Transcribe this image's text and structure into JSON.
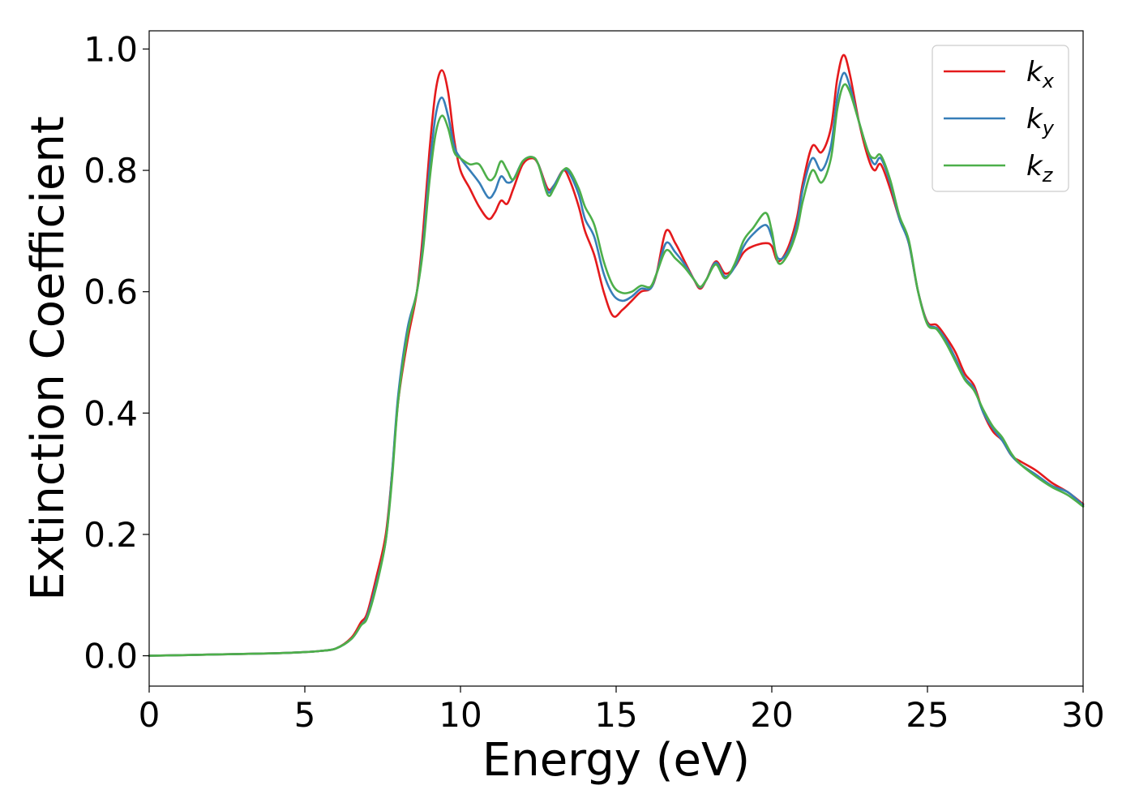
{
  "chart_data": {
    "type": "line",
    "title": "",
    "xlabel": "Energy (eV)",
    "ylabel": "Extinction Coefficient",
    "xlim": [
      0,
      30
    ],
    "ylim": [
      -0.05,
      1.03
    ],
    "xticks": [
      0,
      5,
      10,
      15,
      20,
      25,
      30
    ],
    "xtick_labels": [
      "0",
      "5",
      "10",
      "15",
      "20",
      "25",
      "30"
    ],
    "yticks": [
      0.0,
      0.2,
      0.4,
      0.6,
      0.8,
      1.0
    ],
    "ytick_labels": [
      "0.0",
      "0.2",
      "0.4",
      "0.6",
      "0.8",
      "1.0"
    ],
    "grid": false,
    "legend_position": "top-right",
    "series": [
      {
        "name": "k_x",
        "legend_base": "k",
        "legend_sub": "x",
        "color": "#e41a1c",
        "points": [
          [
            0,
            0.0
          ],
          [
            2,
            0.002
          ],
          [
            4,
            0.004
          ],
          [
            5,
            0.006
          ],
          [
            5.5,
            0.008
          ],
          [
            6,
            0.012
          ],
          [
            6.5,
            0.03
          ],
          [
            6.8,
            0.055
          ],
          [
            7.0,
            0.07
          ],
          [
            7.3,
            0.13
          ],
          [
            7.6,
            0.2
          ],
          [
            7.8,
            0.3
          ],
          [
            8.0,
            0.42
          ],
          [
            8.3,
            0.52
          ],
          [
            8.6,
            0.6
          ],
          [
            8.8,
            0.7
          ],
          [
            9.0,
            0.83
          ],
          [
            9.2,
            0.93
          ],
          [
            9.4,
            0.965
          ],
          [
            9.6,
            0.93
          ],
          [
            9.8,
            0.85
          ],
          [
            10.0,
            0.8
          ],
          [
            10.3,
            0.77
          ],
          [
            10.6,
            0.74
          ],
          [
            10.9,
            0.72
          ],
          [
            11.1,
            0.73
          ],
          [
            11.3,
            0.75
          ],
          [
            11.5,
            0.745
          ],
          [
            11.7,
            0.77
          ],
          [
            12.0,
            0.81
          ],
          [
            12.3,
            0.82
          ],
          [
            12.5,
            0.81
          ],
          [
            12.8,
            0.77
          ],
          [
            13.0,
            0.775
          ],
          [
            13.3,
            0.8
          ],
          [
            13.5,
            0.785
          ],
          [
            13.8,
            0.74
          ],
          [
            14.0,
            0.7
          ],
          [
            14.3,
            0.66
          ],
          [
            14.6,
            0.6
          ],
          [
            14.9,
            0.56
          ],
          [
            15.2,
            0.57
          ],
          [
            15.5,
            0.585
          ],
          [
            15.8,
            0.6
          ],
          [
            16.1,
            0.605
          ],
          [
            16.3,
            0.63
          ],
          [
            16.6,
            0.7
          ],
          [
            16.9,
            0.68
          ],
          [
            17.2,
            0.65
          ],
          [
            17.5,
            0.62
          ],
          [
            17.7,
            0.605
          ],
          [
            17.9,
            0.62
          ],
          [
            18.2,
            0.65
          ],
          [
            18.5,
            0.63
          ],
          [
            18.8,
            0.64
          ],
          [
            19.1,
            0.665
          ],
          [
            19.4,
            0.675
          ],
          [
            19.8,
            0.68
          ],
          [
            20.0,
            0.675
          ],
          [
            20.2,
            0.65
          ],
          [
            20.5,
            0.67
          ],
          [
            20.8,
            0.72
          ],
          [
            21.0,
            0.78
          ],
          [
            21.3,
            0.84
          ],
          [
            21.6,
            0.83
          ],
          [
            21.9,
            0.87
          ],
          [
            22.1,
            0.95
          ],
          [
            22.3,
            0.99
          ],
          [
            22.5,
            0.96
          ],
          [
            22.8,
            0.88
          ],
          [
            23.1,
            0.82
          ],
          [
            23.3,
            0.8
          ],
          [
            23.5,
            0.81
          ],
          [
            23.8,
            0.77
          ],
          [
            24.1,
            0.72
          ],
          [
            24.4,
            0.68
          ],
          [
            24.7,
            0.6
          ],
          [
            25.0,
            0.55
          ],
          [
            25.3,
            0.545
          ],
          [
            25.6,
            0.525
          ],
          [
            25.9,
            0.5
          ],
          [
            26.2,
            0.465
          ],
          [
            26.5,
            0.445
          ],
          [
            26.8,
            0.4
          ],
          [
            27.1,
            0.37
          ],
          [
            27.4,
            0.355
          ],
          [
            27.7,
            0.33
          ],
          [
            28.0,
            0.32
          ],
          [
            28.5,
            0.305
          ],
          [
            29.0,
            0.285
          ],
          [
            29.5,
            0.27
          ],
          [
            30.0,
            0.25
          ]
        ]
      },
      {
        "name": "k_y",
        "legend_base": "k",
        "legend_sub": "y",
        "color": "#377eb8",
        "points": [
          [
            0,
            0.0
          ],
          [
            2,
            0.002
          ],
          [
            4,
            0.004
          ],
          [
            5,
            0.006
          ],
          [
            5.5,
            0.008
          ],
          [
            6,
            0.012
          ],
          [
            6.5,
            0.028
          ],
          [
            6.8,
            0.05
          ],
          [
            7.0,
            0.065
          ],
          [
            7.3,
            0.12
          ],
          [
            7.6,
            0.19
          ],
          [
            7.8,
            0.3
          ],
          [
            8.0,
            0.43
          ],
          [
            8.3,
            0.54
          ],
          [
            8.6,
            0.6
          ],
          [
            8.8,
            0.68
          ],
          [
            9.0,
            0.8
          ],
          [
            9.2,
            0.89
          ],
          [
            9.4,
            0.92
          ],
          [
            9.6,
            0.89
          ],
          [
            9.8,
            0.84
          ],
          [
            10.0,
            0.82
          ],
          [
            10.3,
            0.8
          ],
          [
            10.6,
            0.78
          ],
          [
            10.9,
            0.755
          ],
          [
            11.1,
            0.765
          ],
          [
            11.3,
            0.79
          ],
          [
            11.5,
            0.78
          ],
          [
            11.7,
            0.785
          ],
          [
            12.0,
            0.815
          ],
          [
            12.3,
            0.822
          ],
          [
            12.5,
            0.81
          ],
          [
            12.8,
            0.765
          ],
          [
            13.0,
            0.775
          ],
          [
            13.3,
            0.8
          ],
          [
            13.5,
            0.795
          ],
          [
            13.8,
            0.76
          ],
          [
            14.0,
            0.72
          ],
          [
            14.3,
            0.69
          ],
          [
            14.6,
            0.63
          ],
          [
            14.9,
            0.595
          ],
          [
            15.2,
            0.585
          ],
          [
            15.5,
            0.592
          ],
          [
            15.8,
            0.605
          ],
          [
            16.1,
            0.605
          ],
          [
            16.3,
            0.63
          ],
          [
            16.6,
            0.68
          ],
          [
            16.9,
            0.665
          ],
          [
            17.2,
            0.645
          ],
          [
            17.5,
            0.62
          ],
          [
            17.7,
            0.607
          ],
          [
            17.9,
            0.62
          ],
          [
            18.2,
            0.648
          ],
          [
            18.5,
            0.625
          ],
          [
            18.8,
            0.64
          ],
          [
            19.1,
            0.675
          ],
          [
            19.4,
            0.695
          ],
          [
            19.8,
            0.71
          ],
          [
            20.0,
            0.69
          ],
          [
            20.2,
            0.655
          ],
          [
            20.5,
            0.665
          ],
          [
            20.8,
            0.71
          ],
          [
            21.0,
            0.77
          ],
          [
            21.3,
            0.82
          ],
          [
            21.6,
            0.8
          ],
          [
            21.9,
            0.84
          ],
          [
            22.1,
            0.92
          ],
          [
            22.3,
            0.96
          ],
          [
            22.5,
            0.94
          ],
          [
            22.8,
            0.88
          ],
          [
            23.1,
            0.83
          ],
          [
            23.3,
            0.81
          ],
          [
            23.5,
            0.82
          ],
          [
            23.8,
            0.78
          ],
          [
            24.1,
            0.72
          ],
          [
            24.4,
            0.68
          ],
          [
            24.7,
            0.6
          ],
          [
            25.0,
            0.548
          ],
          [
            25.3,
            0.54
          ],
          [
            25.6,
            0.52
          ],
          [
            25.9,
            0.49
          ],
          [
            26.2,
            0.458
          ],
          [
            26.5,
            0.44
          ],
          [
            26.8,
            0.4
          ],
          [
            27.1,
            0.375
          ],
          [
            27.4,
            0.355
          ],
          [
            27.7,
            0.33
          ],
          [
            28.0,
            0.315
          ],
          [
            28.5,
            0.298
          ],
          [
            29.0,
            0.28
          ],
          [
            29.5,
            0.27
          ],
          [
            30.0,
            0.248
          ]
        ]
      },
      {
        "name": "k_z",
        "legend_base": "k",
        "legend_sub": "z",
        "color": "#4daf4a",
        "points": [
          [
            0,
            0.0
          ],
          [
            2,
            0.002
          ],
          [
            4,
            0.004
          ],
          [
            5,
            0.006
          ],
          [
            5.5,
            0.008
          ],
          [
            6,
            0.012
          ],
          [
            6.5,
            0.028
          ],
          [
            6.8,
            0.05
          ],
          [
            7.0,
            0.062
          ],
          [
            7.3,
            0.115
          ],
          [
            7.6,
            0.19
          ],
          [
            7.8,
            0.29
          ],
          [
            8.0,
            0.42
          ],
          [
            8.3,
            0.53
          ],
          [
            8.6,
            0.6
          ],
          [
            8.8,
            0.67
          ],
          [
            9.0,
            0.78
          ],
          [
            9.2,
            0.86
          ],
          [
            9.4,
            0.89
          ],
          [
            9.6,
            0.87
          ],
          [
            9.8,
            0.83
          ],
          [
            10.0,
            0.82
          ],
          [
            10.3,
            0.81
          ],
          [
            10.6,
            0.81
          ],
          [
            10.9,
            0.785
          ],
          [
            11.1,
            0.79
          ],
          [
            11.3,
            0.815
          ],
          [
            11.5,
            0.8
          ],
          [
            11.7,
            0.785
          ],
          [
            12.0,
            0.815
          ],
          [
            12.3,
            0.822
          ],
          [
            12.5,
            0.81
          ],
          [
            12.8,
            0.76
          ],
          [
            13.0,
            0.77
          ],
          [
            13.3,
            0.8
          ],
          [
            13.5,
            0.8
          ],
          [
            13.8,
            0.77
          ],
          [
            14.0,
            0.74
          ],
          [
            14.3,
            0.71
          ],
          [
            14.6,
            0.65
          ],
          [
            14.9,
            0.61
          ],
          [
            15.2,
            0.598
          ],
          [
            15.5,
            0.6
          ],
          [
            15.8,
            0.61
          ],
          [
            16.1,
            0.608
          ],
          [
            16.3,
            0.63
          ],
          [
            16.6,
            0.668
          ],
          [
            16.9,
            0.655
          ],
          [
            17.2,
            0.64
          ],
          [
            17.5,
            0.62
          ],
          [
            17.7,
            0.608
          ],
          [
            17.9,
            0.62
          ],
          [
            18.2,
            0.645
          ],
          [
            18.5,
            0.622
          ],
          [
            18.8,
            0.645
          ],
          [
            19.1,
            0.685
          ],
          [
            19.4,
            0.705
          ],
          [
            19.8,
            0.73
          ],
          [
            20.0,
            0.7
          ],
          [
            20.2,
            0.648
          ],
          [
            20.5,
            0.66
          ],
          [
            20.8,
            0.7
          ],
          [
            21.0,
            0.75
          ],
          [
            21.3,
            0.8
          ],
          [
            21.6,
            0.78
          ],
          [
            21.9,
            0.82
          ],
          [
            22.1,
            0.9
          ],
          [
            22.3,
            0.94
          ],
          [
            22.5,
            0.93
          ],
          [
            22.8,
            0.88
          ],
          [
            23.1,
            0.83
          ],
          [
            23.3,
            0.82
          ],
          [
            23.5,
            0.825
          ],
          [
            23.8,
            0.785
          ],
          [
            24.1,
            0.725
          ],
          [
            24.4,
            0.685
          ],
          [
            24.7,
            0.6
          ],
          [
            25.0,
            0.546
          ],
          [
            25.3,
            0.538
          ],
          [
            25.6,
            0.515
          ],
          [
            25.9,
            0.485
          ],
          [
            26.2,
            0.455
          ],
          [
            26.5,
            0.437
          ],
          [
            26.8,
            0.405
          ],
          [
            27.1,
            0.378
          ],
          [
            27.4,
            0.36
          ],
          [
            27.7,
            0.333
          ],
          [
            28.0,
            0.315
          ],
          [
            28.5,
            0.295
          ],
          [
            29.0,
            0.278
          ],
          [
            29.5,
            0.265
          ],
          [
            30.0,
            0.246
          ]
        ]
      }
    ]
  }
}
